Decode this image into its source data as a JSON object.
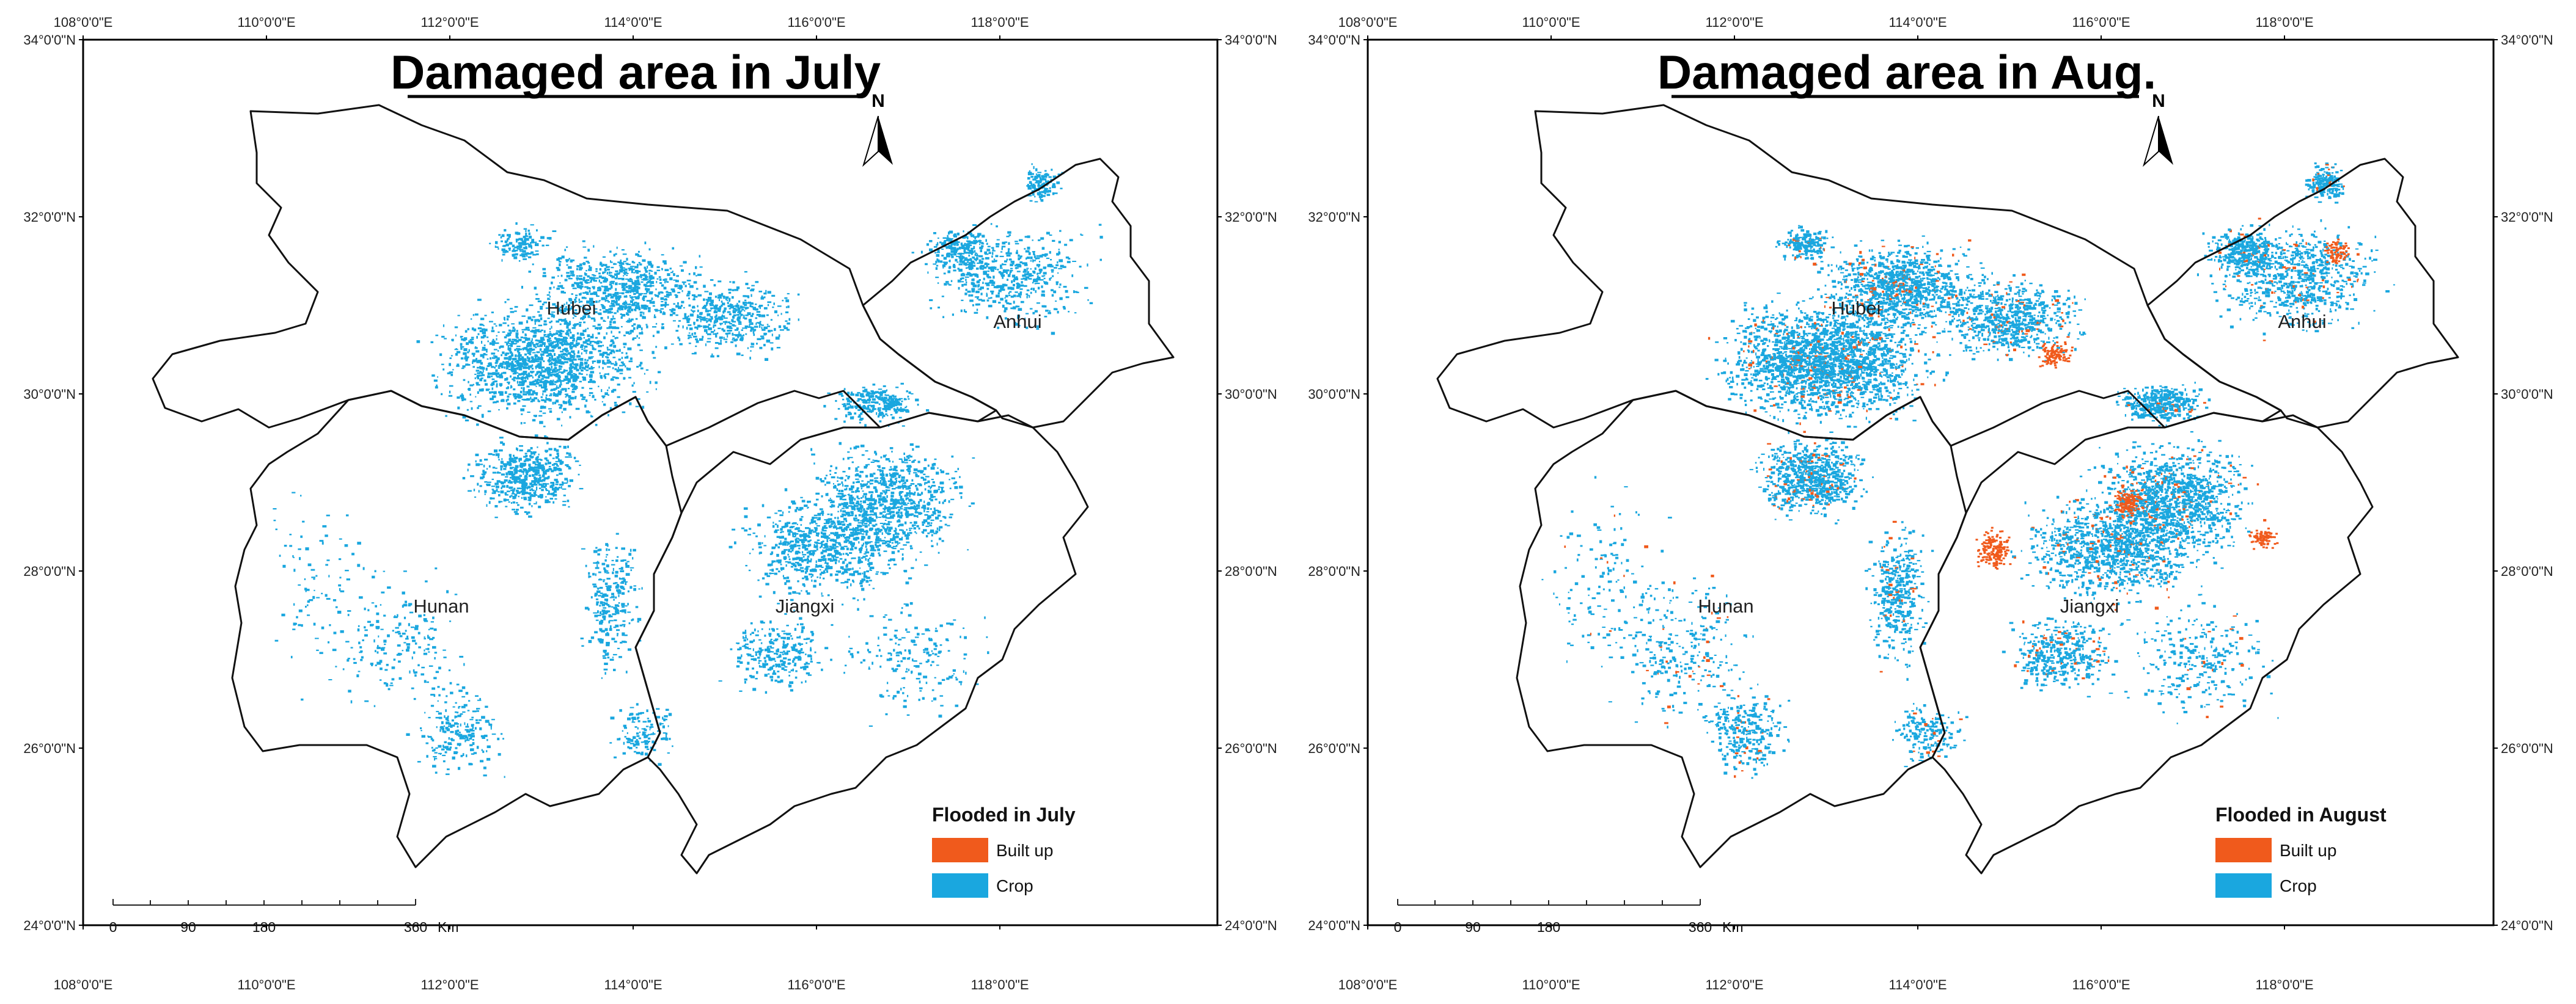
{
  "colors": {
    "built_up": "#f05a1c",
    "crop": "#1aa7df",
    "boundary": "#111111"
  },
  "maps": [
    {
      "id": "july",
      "title": "Damaged area in July",
      "north_label": "N",
      "provinces": [
        "Hubei",
        "Anhui",
        "Hunan",
        "Jiangxi"
      ],
      "lon_ticks": [
        "108°0'0\"E",
        "110°0'0\"E",
        "112°0'0\"E",
        "114°0'0\"E",
        "116°0'0\"E",
        "118°0'0\"E"
      ],
      "lat_ticks": [
        "34°0'0\"N",
        "32°0'0\"N",
        "30°0'0\"N",
        "28°0'0\"N",
        "26°0'0\"N",
        "24°0'0\"N"
      ],
      "legend": {
        "title": "Flooded in July",
        "items": [
          {
            "label": "Built up",
            "color": "#f05a1c"
          },
          {
            "label": "Crop",
            "color": "#1aa7df"
          }
        ]
      },
      "scale": {
        "labels": [
          "0",
          "90",
          "180",
          "360"
        ],
        "unit": "Km"
      }
    },
    {
      "id": "aug",
      "title": "Damaged area in Aug.",
      "north_label": "N",
      "provinces": [
        "Hubei",
        "Anhui",
        "Hunan",
        "Jiangxi"
      ],
      "lon_ticks": [
        "108°0'0\"E",
        "110°0'0\"E",
        "112°0'0\"E",
        "114°0'0\"E",
        "116°0'0\"E",
        "118°0'0\"E"
      ],
      "lat_ticks": [
        "34°0'0\"N",
        "32°0'0\"N",
        "30°0'0\"N",
        "28°0'0\"N",
        "26°0'0\"N",
        "24°0'0\"N"
      ],
      "legend": {
        "title": "Flooded in August",
        "items": [
          {
            "label": "Built up",
            "color": "#f05a1c"
          },
          {
            "label": "Crop",
            "color": "#1aa7df"
          }
        ]
      },
      "scale": {
        "labels": [
          "0",
          "90",
          "180",
          "360"
        ],
        "unit": "Km"
      }
    }
  ]
}
